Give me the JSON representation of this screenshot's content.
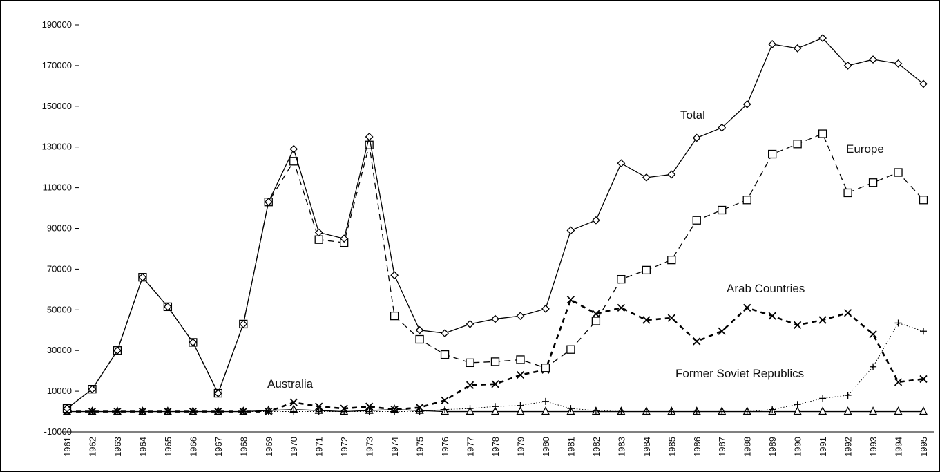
{
  "chart_data": {
    "type": "line",
    "categories": [
      "1961",
      "1962",
      "1963",
      "1964",
      "1965",
      "1966",
      "1967",
      "1968",
      "1969",
      "1970",
      "1971",
      "1972",
      "1973",
      "1974",
      "1975",
      "1976",
      "1977",
      "1978",
      "1979",
      "1980",
      "1981",
      "1982",
      "1983",
      "1984",
      "1985",
      "1986",
      "1987",
      "1988",
      "1989",
      "1990",
      "1991",
      "1992",
      "1993",
      "1994",
      "1995"
    ],
    "series": [
      {
        "name": "Total",
        "color": "#000000",
        "marker": "diamond",
        "line_style": "solid",
        "values": [
          1500,
          11000,
          30000,
          66000,
          51500,
          34000,
          9000,
          43000,
          103000,
          129000,
          88000,
          85000,
          135000,
          67000,
          40000,
          38500,
          43000,
          45500,
          47000,
          50500,
          89000,
          94000,
          122000,
          115000,
          116500,
          134500,
          139500,
          151000,
          180500,
          178500,
          183500,
          170000,
          173000,
          171000,
          161000
        ]
      },
      {
        "name": "Europe",
        "color": "#000000",
        "marker": "square",
        "line_style": "dashed",
        "values": [
          1500,
          11000,
          30000,
          66000,
          51500,
          34000,
          9000,
          43000,
          103000,
          123000,
          84500,
          83000,
          131000,
          47000,
          35500,
          28000,
          24000,
          24500,
          25500,
          21500,
          30500,
          44500,
          65000,
          69500,
          74500,
          94000,
          99000,
          104000,
          126500,
          131500,
          136500,
          107500,
          112500,
          117500,
          104000
        ]
      },
      {
        "name": "Arab Countries",
        "color": "#000000",
        "marker": "x",
        "line_style": "bold-dashed",
        "values": [
          0,
          0,
          0,
          0,
          0,
          0,
          0,
          0,
          0,
          4500,
          2500,
          1500,
          2500,
          1000,
          2000,
          5500,
          13000,
          13500,
          18000,
          20500,
          55000,
          48000,
          51000,
          45000,
          46000,
          34500,
          39500,
          51000,
          47000,
          42500,
          45000,
          48500,
          38000,
          14500,
          16000
        ]
      },
      {
        "name": "Former Soviet Republics",
        "color": "#000000",
        "marker": "plus",
        "line_style": "dotted",
        "values": [
          0,
          0,
          0,
          0,
          0,
          0,
          0,
          0,
          0,
          0,
          0,
          0,
          0,
          0,
          0,
          1000,
          1500,
          2500,
          3000,
          5000,
          1500,
          500,
          0,
          0,
          0,
          0,
          0,
          0,
          1000,
          3500,
          6500,
          8000,
          22000,
          43500,
          39500
        ]
      },
      {
        "name": "Australia",
        "color": "#000000",
        "marker": "triangle",
        "line_style": "solid",
        "values": [
          0,
          0,
          0,
          0,
          0,
          0,
          0,
          0,
          500,
          1000,
          500,
          0,
          500,
          1000,
          500,
          0,
          0,
          0,
          0,
          0,
          0,
          0,
          0,
          0,
          0,
          0,
          0,
          0,
          0,
          0,
          0,
          0,
          0,
          0,
          0
        ]
      }
    ],
    "ylim": [
      -10000,
      190000
    ],
    "yticks": [
      -10000,
      10000,
      30000,
      50000,
      70000,
      90000,
      110000,
      130000,
      150000,
      170000,
      190000
    ]
  }
}
